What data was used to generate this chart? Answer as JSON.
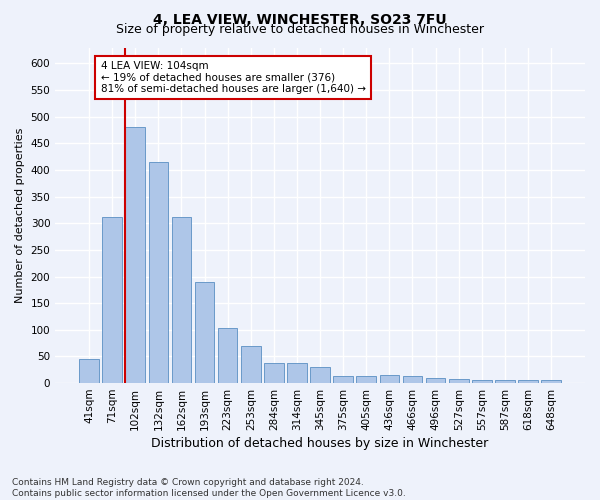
{
  "title": "4, LEA VIEW, WINCHESTER, SO23 7FU",
  "subtitle": "Size of property relative to detached houses in Winchester",
  "xlabel": "Distribution of detached houses by size in Winchester",
  "ylabel": "Number of detached properties",
  "categories": [
    "41sqm",
    "71sqm",
    "102sqm",
    "132sqm",
    "162sqm",
    "193sqm",
    "223sqm",
    "253sqm",
    "284sqm",
    "314sqm",
    "345sqm",
    "375sqm",
    "405sqm",
    "436sqm",
    "466sqm",
    "496sqm",
    "527sqm",
    "557sqm",
    "587sqm",
    "618sqm",
    "648sqm"
  ],
  "values": [
    46,
    311,
    480,
    415,
    312,
    190,
    103,
    70,
    38,
    38,
    31,
    14,
    13,
    15,
    13,
    10,
    8,
    5,
    5,
    5,
    5
  ],
  "bar_color": "#aec6e8",
  "bar_edge_color": "#5a8fc3",
  "vline_x_index": 2,
  "vline_color": "#cc0000",
  "annotation_text": "4 LEA VIEW: 104sqm\n← 19% of detached houses are smaller (376)\n81% of semi-detached houses are larger (1,640) →",
  "annotation_box_color": "#ffffff",
  "annotation_box_edge": "#cc0000",
  "ylim": [
    0,
    630
  ],
  "yticks": [
    0,
    50,
    100,
    150,
    200,
    250,
    300,
    350,
    400,
    450,
    500,
    550,
    600
  ],
  "footnote": "Contains HM Land Registry data © Crown copyright and database right 2024.\nContains public sector information licensed under the Open Government Licence v3.0.",
  "background_color": "#eef2fb",
  "grid_color": "#ffffff",
  "title_fontsize": 10,
  "subtitle_fontsize": 9,
  "xlabel_fontsize": 9,
  "ylabel_fontsize": 8,
  "tick_fontsize": 7.5,
  "annotation_fontsize": 7.5,
  "footnote_fontsize": 6.5
}
